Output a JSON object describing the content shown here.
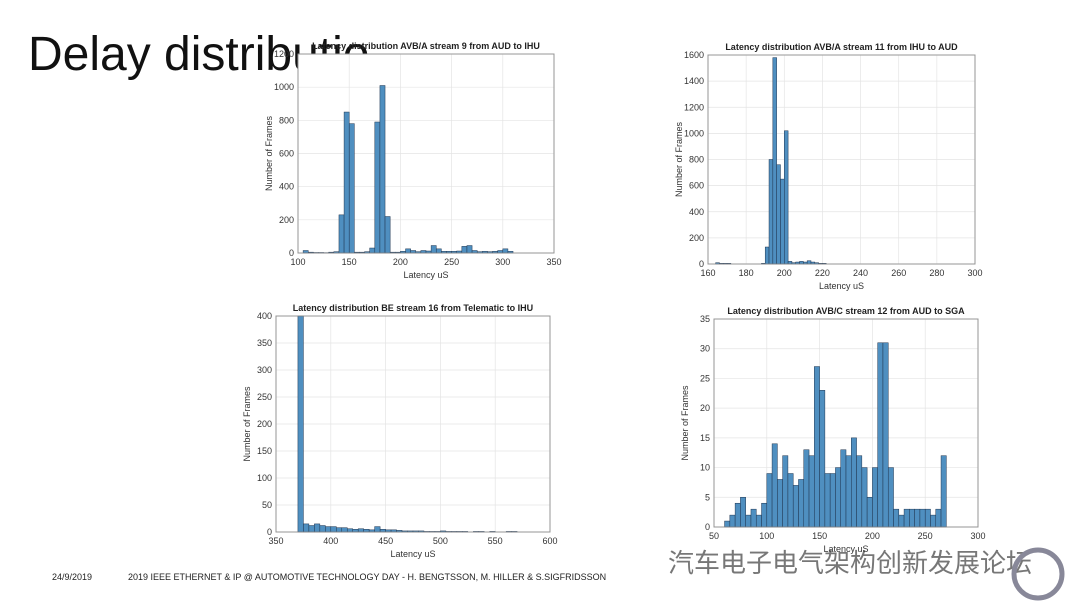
{
  "slide": {
    "title": "Delay distributio",
    "date": "24/9/2019",
    "footer": "2019 IEEE ETHERNET & IP @ AUTOMOTIVE TECHNOLOGY DAY - H. BENGTSSON, M. HILLER & S.SIGFRIDSSON",
    "watermark": "汽车电子电气架构创新发展论坛"
  },
  "chart_data": [
    {
      "type": "histogram",
      "title": "Latency distribution AVB/A stream 9 from AUD to IHU",
      "xlabel": "Latency uS",
      "ylabel": "Number of Frames",
      "color": "#4f8fc0",
      "grid": true,
      "bins": [
        105,
        110,
        115,
        120,
        125,
        130,
        135,
        140,
        145,
        150,
        155,
        160,
        165,
        170,
        175,
        180,
        185,
        190,
        195,
        200,
        205,
        210,
        215,
        220,
        225,
        230,
        235,
        240,
        245,
        250,
        255,
        260,
        265,
        270,
        275,
        280,
        285,
        290,
        295,
        300,
        305,
        310
      ],
      "counts": [
        15,
        5,
        3,
        3,
        2,
        5,
        8,
        230,
        850,
        780,
        5,
        5,
        8,
        30,
        790,
        1010,
        220,
        5,
        5,
        10,
        25,
        15,
        8,
        15,
        12,
        45,
        25,
        10,
        10,
        10,
        12,
        40,
        45,
        15,
        8,
        10,
        8,
        10,
        15,
        25,
        10
      ],
      "xlim": [
        100,
        350
      ],
      "xticks": [
        100,
        150,
        200,
        250,
        300,
        350
      ],
      "ylim": [
        0,
        1200
      ],
      "yticks": [
        0,
        200,
        400,
        600,
        800,
        1000,
        1200
      ]
    },
    {
      "type": "histogram",
      "title": "Latency distribution AVB/A stream 11 from IHU to AUD",
      "xlabel": "Latency uS",
      "ylabel": "Number of Frames",
      "color": "#4f8fc0",
      "grid": true,
      "bins": [
        164,
        166,
        168,
        170,
        172,
        174,
        176,
        178,
        180,
        182,
        184,
        186,
        188,
        190,
        192,
        194,
        196,
        198,
        200,
        202,
        204,
        206,
        208,
        210,
        212,
        214,
        216,
        218,
        220,
        222,
        224
      ],
      "counts": [
        10,
        5,
        5,
        5,
        0,
        0,
        0,
        0,
        0,
        0,
        0,
        0,
        5,
        130,
        800,
        1580,
        760,
        650,
        1020,
        20,
        10,
        15,
        20,
        15,
        25,
        15,
        10,
        5,
        5,
        0
      ],
      "xlim": [
        160,
        300
      ],
      "xticks": [
        160,
        180,
        200,
        220,
        240,
        260,
        280,
        300
      ],
      "ylim": [
        0,
        1600
      ],
      "yticks": [
        0,
        200,
        400,
        600,
        800,
        1000,
        1200,
        1400,
        1600
      ]
    },
    {
      "type": "histogram",
      "title": "Latency distribution BE stream 16 from Telematic to IHU",
      "xlabel": "Latency uS",
      "ylabel": "Number of Frames",
      "color": "#4f8fc0",
      "grid": true,
      "bins": [
        370,
        375,
        380,
        385,
        390,
        395,
        400,
        405,
        410,
        415,
        420,
        425,
        430,
        435,
        440,
        445,
        450,
        455,
        460,
        465,
        470,
        475,
        480,
        485,
        490,
        495,
        500,
        505,
        510,
        515,
        520,
        525,
        530,
        535,
        540,
        545,
        550,
        555,
        560,
        565,
        570
      ],
      "counts": [
        400,
        15,
        12,
        15,
        12,
        10,
        10,
        8,
        8,
        6,
        5,
        6,
        5,
        4,
        10,
        5,
        4,
        4,
        3,
        2,
        2,
        2,
        2,
        1,
        1,
        1,
        2,
        1,
        1,
        1,
        1,
        0,
        1,
        1,
        0,
        1,
        0,
        0,
        1,
        1
      ],
      "xlim": [
        350,
        600
      ],
      "xticks": [
        350,
        400,
        450,
        500,
        550,
        600
      ],
      "ylim": [
        0,
        400
      ],
      "yticks": [
        0,
        50,
        100,
        150,
        200,
        250,
        300,
        350,
        400
      ]
    },
    {
      "type": "histogram",
      "title": "Latency distribution AVB/C stream 12 from AUD to SGA",
      "xlabel": "Latency uS",
      "ylabel": "Number of Frames",
      "color": "#4f8fc0",
      "grid": true,
      "bins": [
        60,
        65,
        70,
        75,
        80,
        85,
        90,
        95,
        100,
        105,
        110,
        115,
        120,
        125,
        130,
        135,
        140,
        145,
        150,
        155,
        160,
        165,
        170,
        175,
        180,
        185,
        190,
        195,
        200,
        205,
        210,
        215,
        220,
        225,
        230,
        235,
        240,
        245,
        250,
        255,
        260,
        265,
        270
      ],
      "counts": [
        1,
        2,
        4,
        5,
        2,
        3,
        2,
        4,
        9,
        14,
        8,
        12,
        9,
        7,
        8,
        13,
        12,
        27,
        23,
        9,
        9,
        10,
        13,
        12,
        15,
        12,
        10,
        5,
        10,
        31,
        31,
        10,
        3,
        2,
        3,
        3,
        3,
        3,
        3,
        2,
        3,
        12
      ],
      "xlim": [
        50,
        300
      ],
      "xticks": [
        50,
        100,
        150,
        200,
        250,
        300
      ],
      "ylim": [
        0,
        35
      ],
      "yticks": [
        0,
        5,
        10,
        15,
        20,
        25,
        30,
        35
      ]
    }
  ]
}
